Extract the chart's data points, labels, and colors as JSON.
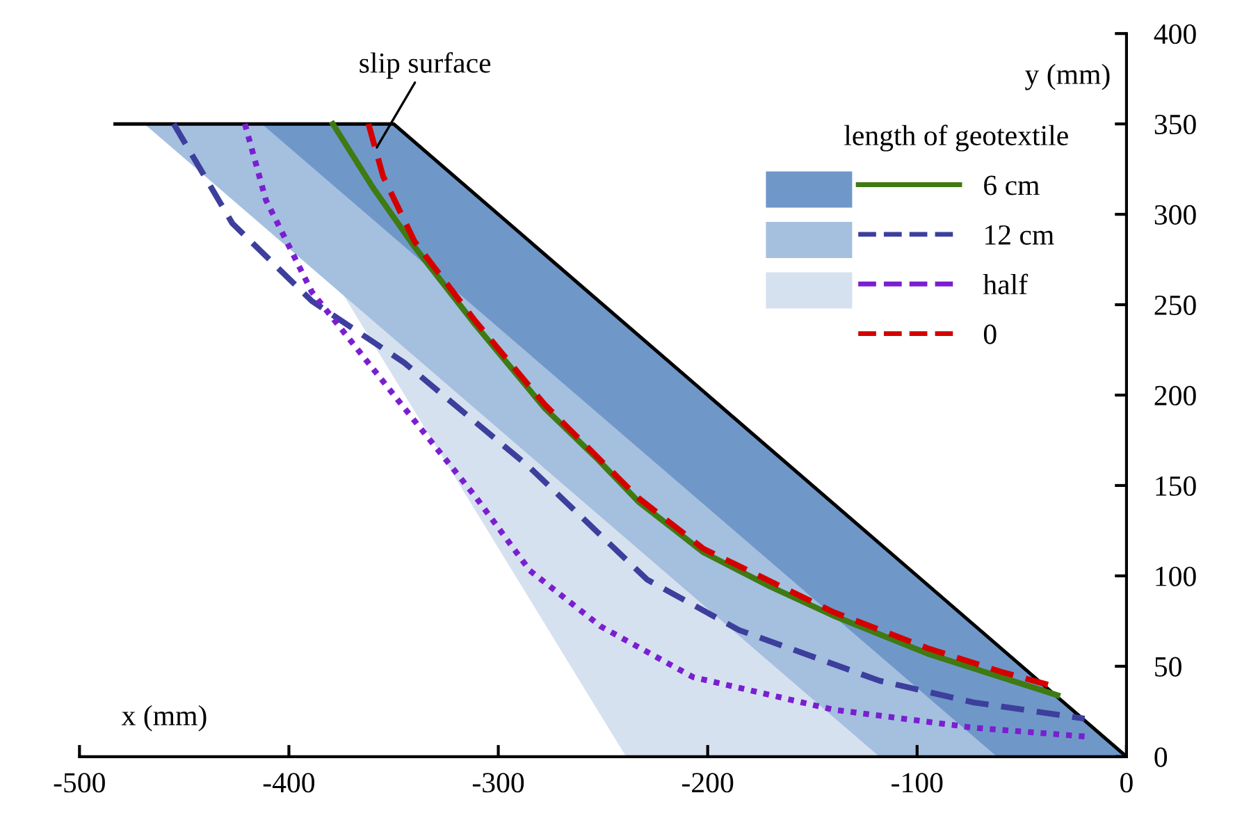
{
  "chart_data": {
    "type": "line",
    "xlabel": "x (mm)",
    "ylabel": "y (mm)",
    "legend_title": "length of geotextile",
    "annotations": [
      {
        "text": "slip surface",
        "x": -358,
        "y": 337
      }
    ],
    "xlim": [
      -500,
      0
    ],
    "ylim": [
      0,
      400
    ],
    "xticks": [
      -500,
      -400,
      -300,
      -200,
      -100,
      0
    ],
    "yticks": [
      0,
      50,
      100,
      150,
      200,
      250,
      300,
      350,
      400
    ],
    "grid": false,
    "legend": "top right",
    "series": [
      {
        "type": "area",
        "color": "#6f98c9",
        "x": [
          -413,
          -350,
          0,
          -62
        ],
        "values": [
          350,
          350,
          0,
          0
        ]
      },
      {
        "type": "area",
        "color": "#a5bfdf",
        "x": [
          -469,
          -413,
          -62,
          -118
        ],
        "values": [
          350,
          350,
          0,
          0
        ]
      },
      {
        "type": "area",
        "color": "#d6e1f0",
        "x": [
          -424,
          -413,
          -62,
          -239
        ],
        "values": [
          350,
          350,
          0,
          0
        ]
      },
      {
        "type": "line",
        "color": "#000000",
        "line_style": "solid",
        "x": [
          -483,
          -350,
          0
        ],
        "values": [
          350,
          350,
          0
        ]
      },
      {
        "type": "line",
        "name": "6 cm",
        "color": "#3f7a12",
        "line_style": "solid",
        "x": [
          -379,
          -360,
          -340,
          -311,
          -278,
          -253,
          -233,
          -202,
          -170,
          -140,
          -95,
          -60,
          -33
        ],
        "values": [
          350,
          315,
          282,
          239,
          193,
          165,
          141,
          113,
          94,
          78,
          57,
          44,
          34
        ]
      },
      {
        "type": "line",
        "name": "12 cm",
        "color": "#3c3f9c",
        "line_style": "dashed",
        "x": [
          -455,
          -427,
          -389,
          -345,
          -285,
          -229,
          -185,
          -118,
          -73,
          -20
        ],
        "values": [
          350,
          295,
          252,
          218,
          160,
          98,
          70,
          42,
          30,
          21
        ]
      },
      {
        "type": "line",
        "name": "half",
        "color": "#7a1fd0",
        "line_style": "dotted",
        "x": [
          -421,
          -411,
          -389,
          -345,
          -311,
          -285,
          -251,
          -207,
          -140,
          -73,
          -18
        ],
        "values": [
          350,
          308,
          257,
          193,
          144,
          103,
          72,
          44,
          26,
          16,
          11
        ]
      },
      {
        "type": "line",
        "name": "0",
        "color": "#d40000",
        "line_style": "dashed",
        "x": [
          -362,
          -355,
          -340,
          -311,
          -278,
          -233,
          -202,
          -140,
          -95,
          -60,
          -35
        ],
        "values": [
          350,
          321,
          285,
          241,
          195,
          143,
          115,
          80,
          60,
          47,
          39
        ]
      }
    ]
  }
}
